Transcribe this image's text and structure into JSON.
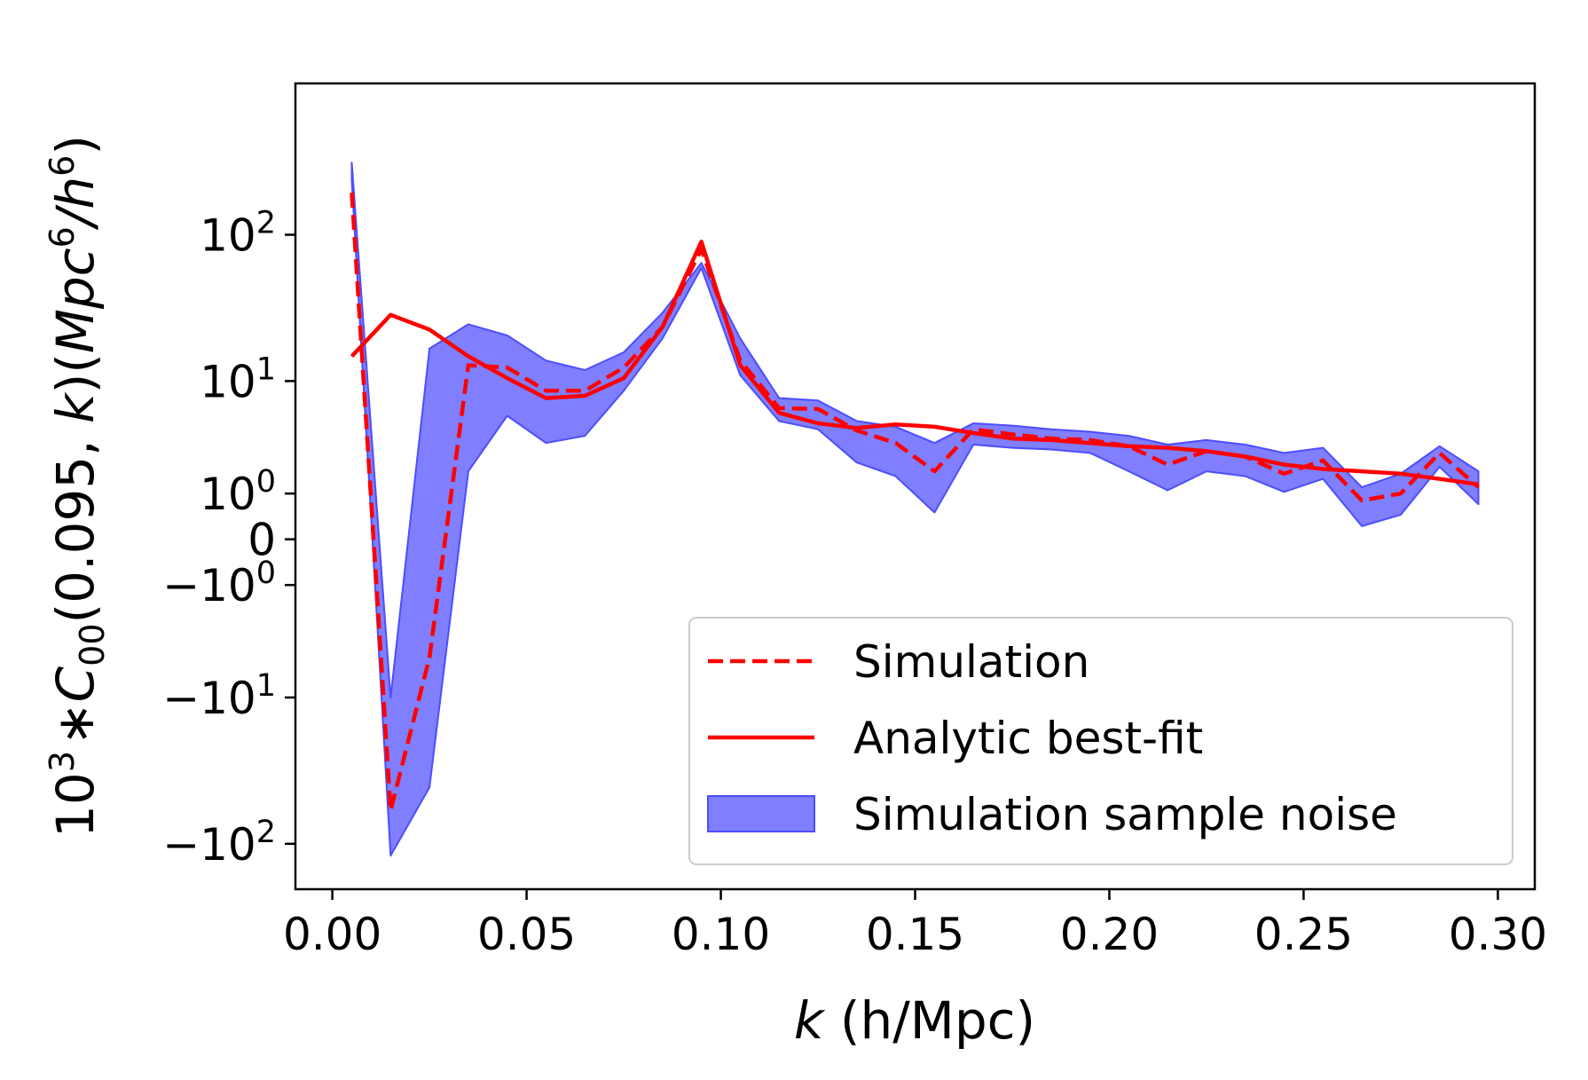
{
  "chart_data": {
    "type": "line",
    "xlabel_var": "k",
    "xlabel_rest": " (h/Mpc)",
    "ylabel_pre": "10",
    "ylabel_pre_sup": "3",
    "ylabel_mid1": "∗",
    "ylabel_var": "C",
    "ylabel_sub": "00",
    "ylabel_args": "(0.095, ",
    "ylabel_k": "k",
    "ylabel_units_open": ")(",
    "ylabel_units_var": "Mpc",
    "ylabel_units_sup": "6",
    "ylabel_units_slash": "/",
    "ylabel_units_h": "h",
    "ylabel_units_sup2": "6",
    "ylabel_units_close": ")",
    "y_scale": "symlog",
    "y_linthresh": 1,
    "xlim": [
      -0.0095,
      0.3095
    ],
    "ylim": [
      -200,
      1000
    ],
    "x_ticks": [
      0.0,
      0.05,
      0.1,
      0.15,
      0.2,
      0.25,
      0.3
    ],
    "x_tick_labels": [
      "0.00",
      "0.05",
      "0.10",
      "0.15",
      "0.20",
      "0.25",
      "0.30"
    ],
    "y_ticks": [
      {
        "value": 100,
        "base": "10",
        "exp": "2",
        "neg": false
      },
      {
        "value": 10,
        "base": "10",
        "exp": "1",
        "neg": false
      },
      {
        "value": 1,
        "base": "10",
        "exp": "0",
        "neg": false
      },
      {
        "value": 0,
        "base": "0",
        "exp": "",
        "neg": false
      },
      {
        "value": -1,
        "base": "10",
        "exp": "0",
        "neg": true
      },
      {
        "value": -10,
        "base": "10",
        "exp": "1",
        "neg": true
      },
      {
        "value": -100,
        "base": "10",
        "exp": "2",
        "neg": true
      }
    ],
    "legend_position": "lower right",
    "x": [
      0.005,
      0.015,
      0.025,
      0.035,
      0.045,
      0.055,
      0.065,
      0.075,
      0.085,
      0.095,
      0.105,
      0.115,
      0.125,
      0.135,
      0.145,
      0.155,
      0.165,
      0.175,
      0.185,
      0.195,
      0.205,
      0.215,
      0.225,
      0.235,
      0.245,
      0.255,
      0.265,
      0.275,
      0.285,
      0.295
    ],
    "series": [
      {
        "name": "Simulation",
        "style": "dashed",
        "color": "#ff0000",
        "values": [
          190,
          -60,
          -5,
          13,
          12.5,
          8.5,
          8.5,
          12.5,
          24,
          80,
          14,
          6.3,
          6.2,
          4.2,
          3.3,
          1.8,
          4.3,
          3.9,
          3.6,
          3.5,
          3.1,
          2.1,
          2.8,
          2.5,
          1.7,
          2.3,
          0.8,
          1.0,
          2.7,
          1.2
        ]
      },
      {
        "name": "Analytic best-fit",
        "style": "solid",
        "color": "#ff0000",
        "values": [
          15,
          29,
          23,
          15,
          10.5,
          7.5,
          7.8,
          10.5,
          24,
          90,
          13,
          5.8,
          4.8,
          4.4,
          4.7,
          4.5,
          4.0,
          3.6,
          3.5,
          3.3,
          3.1,
          3.0,
          2.8,
          2.5,
          2.1,
          1.9,
          1.8,
          1.7,
          1.5,
          1.3
        ]
      }
    ],
    "band": {
      "name": "Simulation sample noise",
      "fill": "#0000ff",
      "fill_opacity": 0.5,
      "lower": [
        230,
        -120,
        -42,
        1.8,
        5.5,
        3.3,
        3.8,
        8.5,
        20,
        60,
        11,
        5.0,
        4.3,
        2.2,
        1.6,
        0.5,
        3.2,
        3.0,
        2.9,
        2.7,
        1.8,
        1.1,
        1.8,
        1.6,
        1.05,
        1.5,
        0.22,
        0.45,
        2.0,
        0.7
      ],
      "upper": [
        300,
        -10,
        17,
        25,
        21,
        14,
        12,
        16,
        30,
        65,
        20,
        7.5,
        7.2,
        5.0,
        4.5,
        3.3,
        4.8,
        4.6,
        4.3,
        4.1,
        3.8,
        3.2,
        3.5,
        3.2,
        2.7,
        3.0,
        1.2,
        1.7,
        3.1,
        1.8
      ]
    }
  }
}
